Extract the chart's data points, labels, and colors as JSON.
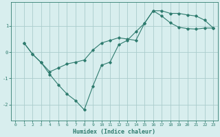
{
  "xlabel": "Humidex (Indice chaleur)",
  "bg_color": "#d8eeee",
  "grid_color": "#aacccc",
  "line_color": "#2e7b6e",
  "xlim": [
    -0.5,
    23.5
  ],
  "ylim": [
    -2.6,
    1.9
  ],
  "yticks": [
    -2,
    -1,
    0,
    1
  ],
  "xticks": [
    0,
    1,
    2,
    3,
    4,
    5,
    6,
    7,
    8,
    9,
    10,
    11,
    12,
    13,
    14,
    15,
    16,
    17,
    18,
    19,
    20,
    21,
    22,
    23
  ],
  "line1_x": [
    1,
    2,
    3,
    4,
    5,
    6,
    7,
    8,
    9,
    10,
    11,
    12,
    13,
    14,
    15,
    16,
    17,
    18,
    19,
    20,
    21,
    22,
    23
  ],
  "line1_y": [
    0.35,
    -0.08,
    -0.4,
    -0.85,
    -1.25,
    -1.6,
    -1.85,
    -2.2,
    -1.3,
    -0.5,
    -0.38,
    0.28,
    0.45,
    0.78,
    1.1,
    1.58,
    1.58,
    1.48,
    1.48,
    1.42,
    1.38,
    1.22,
    0.92
  ],
  "line2_x": [
    1,
    2,
    3,
    4,
    5,
    6,
    7,
    8,
    9,
    10,
    11,
    12,
    13,
    14,
    15,
    16,
    17,
    18,
    19,
    20,
    21,
    22,
    23
  ],
  "line2_y": [
    0.35,
    -0.08,
    -0.4,
    -0.75,
    -0.6,
    -0.45,
    -0.38,
    -0.3,
    0.08,
    0.35,
    0.45,
    0.55,
    0.5,
    0.45,
    1.1,
    1.58,
    1.38,
    1.12,
    0.95,
    0.9,
    0.88,
    0.92,
    0.92
  ]
}
